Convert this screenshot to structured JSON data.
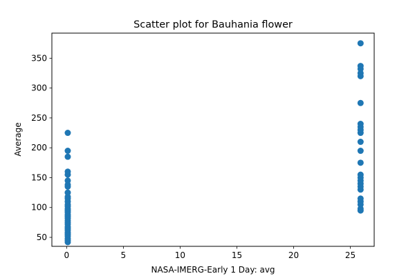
{
  "chart_data": {
    "type": "scatter",
    "title": "Scatter plot for Bauhania flower",
    "xlabel": "NASA-IMERG-Early 1 Day: avg",
    "ylabel": "Average",
    "xlim": [
      -1.3,
      27.1
    ],
    "ylim": [
      35,
      392
    ],
    "xticks": [
      0,
      5,
      10,
      15,
      20,
      25
    ],
    "yticks": [
      50,
      100,
      150,
      200,
      250,
      300,
      350
    ],
    "grid": false,
    "marker_color": "#1f77b4",
    "series": [
      {
        "points": [
          {
            "x": 0.1,
            "y": 42
          },
          {
            "x": 0.1,
            "y": 45
          },
          {
            "x": 0.1,
            "y": 48
          },
          {
            "x": 0.1,
            "y": 52
          },
          {
            "x": 0.1,
            "y": 55
          },
          {
            "x": 0.1,
            "y": 58
          },
          {
            "x": 0.1,
            "y": 62
          },
          {
            "x": 0.1,
            "y": 65
          },
          {
            "x": 0.1,
            "y": 68
          },
          {
            "x": 0.1,
            "y": 72
          },
          {
            "x": 0.1,
            "y": 75
          },
          {
            "x": 0.1,
            "y": 78
          },
          {
            "x": 0.1,
            "y": 82
          },
          {
            "x": 0.1,
            "y": 85
          },
          {
            "x": 0.1,
            "y": 88
          },
          {
            "x": 0.1,
            "y": 92
          },
          {
            "x": 0.1,
            "y": 95
          },
          {
            "x": 0.1,
            "y": 98
          },
          {
            "x": 0.1,
            "y": 102
          },
          {
            "x": 0.1,
            "y": 105
          },
          {
            "x": 0.1,
            "y": 110
          },
          {
            "x": 0.1,
            "y": 115
          },
          {
            "x": 0.1,
            "y": 118
          },
          {
            "x": 0.1,
            "y": 125
          },
          {
            "x": 0.1,
            "y": 135
          },
          {
            "x": 0.1,
            "y": 138
          },
          {
            "x": 0.1,
            "y": 145
          },
          {
            "x": 0.1,
            "y": 155
          },
          {
            "x": 0.1,
            "y": 160
          },
          {
            "x": 0.1,
            "y": 185
          },
          {
            "x": 0.1,
            "y": 195
          },
          {
            "x": 0.1,
            "y": 225
          },
          {
            "x": 25.9,
            "y": 95
          },
          {
            "x": 25.9,
            "y": 98
          },
          {
            "x": 25.9,
            "y": 105
          },
          {
            "x": 25.9,
            "y": 110
          },
          {
            "x": 25.9,
            "y": 115
          },
          {
            "x": 25.9,
            "y": 130
          },
          {
            "x": 25.9,
            "y": 135
          },
          {
            "x": 25.9,
            "y": 140
          },
          {
            "x": 25.9,
            "y": 145
          },
          {
            "x": 25.9,
            "y": 150
          },
          {
            "x": 25.9,
            "y": 155
          },
          {
            "x": 25.9,
            "y": 175
          },
          {
            "x": 25.9,
            "y": 195
          },
          {
            "x": 25.9,
            "y": 210
          },
          {
            "x": 25.9,
            "y": 225
          },
          {
            "x": 25.9,
            "y": 230
          },
          {
            "x": 25.9,
            "y": 235
          },
          {
            "x": 25.9,
            "y": 240
          },
          {
            "x": 25.9,
            "y": 275
          },
          {
            "x": 25.9,
            "y": 320
          },
          {
            "x": 25.9,
            "y": 325
          },
          {
            "x": 25.9,
            "y": 332
          },
          {
            "x": 25.9,
            "y": 337
          },
          {
            "x": 25.9,
            "y": 375
          }
        ]
      }
    ]
  }
}
